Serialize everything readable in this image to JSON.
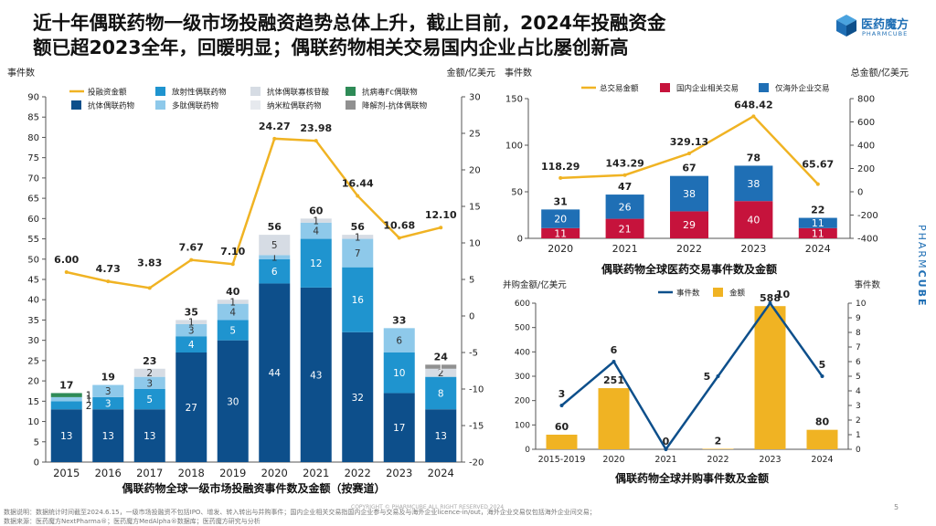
{
  "slide": {
    "title_line1": "近十年偶联药物一级市场投融资趋势总体上升，截止目前，2024年投融资金",
    "title_line2": "额已超2023全年，回暖明显；偶联药物相关交易国内企业占比屡创新高",
    "brand_name": "医药魔方",
    "brand_sub": "PHARMCUBE",
    "side_brand_pharm": "PHARM",
    "side_brand_cube": "CUBE",
    "copyright": "COPYRIGHT © PHARMCUBE ALL RIGHT RESERVED 2024",
    "page_number": "5",
    "footnote_1": "数据说明：数据统计时间截至2024.6.15，一级市场投融资不包括IPO、增发、转入转出与并购事件；国内企业相关交易指国内企业参与交易及与海外企业licence-in/out，海外企业交易仅包括海外企业间交易；",
    "footnote_2": "数据来源：医药魔方NextPharma®；医药魔方MedAlpha®数据库；医药魔方研究与分析",
    "colors": {
      "dark_blue": "#0d4f8b",
      "mid_blue": "#1f94cf",
      "light_blue": "#8ec9ea",
      "light_gray": "#d6dce4",
      "gold": "#f0b323",
      "crimson": "#c6133c",
      "gray": "#909090"
    }
  },
  "chart_data": [
    {
      "id": "primary-market",
      "type": "bar",
      "stacked": true,
      "title": "偶联药物全球一级市场投融资事件数及金额（按赛道）",
      "ylabel": "事件数",
      "y2label": "金额/亿美元",
      "ylim": [
        0,
        90
      ],
      "y2lim": [
        -20,
        30
      ],
      "y_ticks": [
        0,
        5,
        10,
        15,
        20,
        25,
        30,
        35,
        40,
        45,
        50,
        55,
        60,
        65,
        70,
        75,
        80,
        85,
        90
      ],
      "y2_ticks": [
        -20,
        -15,
        -10,
        -5,
        0,
        5,
        10,
        15,
        20,
        25,
        30
      ],
      "categories": [
        "2015",
        "2016",
        "2017",
        "2018",
        "2019",
        "2020",
        "2021",
        "2022",
        "2023",
        "2024"
      ],
      "series": [
        {
          "name": "抗体偶联药物",
          "color": "#0d4f8b",
          "values": [
            13,
            13,
            13,
            27,
            30,
            44,
            43,
            32,
            17,
            13
          ],
          "labels": [
            "13",
            "13",
            "13",
            "27",
            "30",
            "44",
            "43",
            "32",
            "17",
            "13"
          ]
        },
        {
          "name": "放射性偶联药物",
          "color": "#1f94cf",
          "values": [
            2,
            3,
            5,
            4,
            5,
            6,
            12,
            16,
            10,
            8
          ],
          "labels": [
            "2",
            "3",
            "5",
            "4",
            "5",
            "6",
            "12",
            "16",
            "10",
            "8"
          ]
        },
        {
          "name": "多肽偶联药物",
          "color": "#8ec9ea",
          "values": [
            1,
            3,
            3,
            3,
            4,
            1,
            4,
            7,
            6,
            0
          ],
          "labels": [
            "1",
            "3",
            "3",
            "3",
            "4",
            "1",
            "4",
            "7",
            "6",
            ""
          ]
        },
        {
          "name": "抗体偶联寡核苷酸",
          "color": "#d6dce4",
          "values": [
            0,
            0,
            2,
            1,
            1,
            5,
            1,
            1,
            0,
            2
          ],
          "labels": [
            "",
            "",
            "2",
            "1",
            "1",
            "5",
            "1",
            "1",
            "",
            "2"
          ]
        },
        {
          "name": "纳米粒偶联药物",
          "color": "#e6e9ee",
          "values": [
            0,
            0,
            0,
            0,
            0,
            0,
            0,
            0,
            0,
            0
          ],
          "labels": [
            "",
            "",
            "",
            "",
            "",
            "",
            "",
            "",
            "",
            ""
          ]
        },
        {
          "name": "抗病毒Fc偶联物",
          "color": "#2e8b57",
          "values": [
            1,
            0,
            0,
            0,
            0,
            0,
            0,
            0,
            0,
            0
          ],
          "labels": [
            "1",
            "",
            "",
            "",
            "",
            "",
            "",
            "",
            "",
            ""
          ]
        },
        {
          "name": "降解剂-抗体偶联物",
          "color": "#909090",
          "values": [
            0,
            0,
            0,
            0,
            0,
            0,
            0,
            0,
            0,
            1
          ],
          "labels": [
            "",
            "",
            "",
            "",
            "",
            "",
            "",
            "",
            "",
            "1"
          ]
        }
      ],
      "totals": [
        "17",
        "19",
        "23",
        "35",
        "40",
        "56",
        "60",
        "56",
        "33",
        "24"
      ],
      "total_values": [
        17,
        19,
        23,
        35,
        40,
        56,
        60,
        56,
        33,
        24
      ],
      "line": {
        "name": "投融资金额",
        "color": "#f0b323",
        "values": [
          6.0,
          4.73,
          3.83,
          7.67,
          7.1,
          24.27,
          23.98,
          16.44,
          10.68,
          12.1
        ],
        "labels": [
          "6.00",
          "4.73",
          "3.83",
          "7.67",
          "7.10",
          "24.27",
          "23.98",
          "16.44",
          "10.68",
          "12.10"
        ]
      }
    },
    {
      "id": "pharma-deals",
      "type": "bar",
      "stacked": true,
      "title": "偶联药物全球医药交易事件数及金额",
      "ylabel": "事件数",
      "y2label": "总金额/亿美元",
      "ylim": [
        0,
        150
      ],
      "y2lim": [
        -400,
        800
      ],
      "y_ticks": [
        0,
        50,
        100,
        150
      ],
      "y2_ticks": [
        -400,
        -200,
        0,
        200,
        400,
        600,
        800
      ],
      "categories": [
        "2020",
        "2021",
        "2022",
        "2023",
        "2024"
      ],
      "series": [
        {
          "name": "国内企业相关交易",
          "color": "#c6133c",
          "values": [
            11,
            21,
            29,
            40,
            11
          ],
          "labels": [
            "11",
            "21",
            "29",
            "40",
            "11"
          ]
        },
        {
          "name": "仅海外企业交易",
          "color": "#1f6fb5",
          "values": [
            20,
            26,
            38,
            38,
            11
          ],
          "labels": [
            "20",
            "26",
            "38",
            "38",
            "11"
          ]
        }
      ],
      "totals": [
        "31",
        "47",
        "67",
        "78",
        "22"
      ],
      "total_values": [
        31,
        47,
        67,
        78,
        22
      ],
      "line": {
        "name": "总交易金额",
        "color": "#f0b323",
        "values": [
          118.29,
          143.29,
          329.13,
          648.42,
          65.67
        ],
        "labels": [
          "118.29",
          "143.29",
          "329.13",
          "648.42",
          "65.67"
        ]
      }
    },
    {
      "id": "mna",
      "type": "bar",
      "title": "偶联药物全球并购事件数及金额",
      "ylabel": "并购金额/亿美元",
      "y2label": "事件数",
      "ylim": [
        0,
        600
      ],
      "y2lim": [
        0,
        10
      ],
      "y_ticks": [
        0,
        100,
        200,
        300,
        400,
        500,
        600
      ],
      "y2_ticks": [
        0,
        1,
        2,
        3,
        4,
        5,
        6,
        7,
        8,
        9,
        10
      ],
      "categories": [
        "2015-2019",
        "2020",
        "2021",
        "2022",
        "2023",
        "2024"
      ],
      "bars": {
        "name": "金额",
        "color": "#f0b323",
        "values": [
          60,
          251,
          0,
          2,
          588,
          80
        ],
        "labels": [
          "60",
          "251",
          "0",
          "2",
          "588",
          "80"
        ]
      },
      "line": {
        "name": "事件数",
        "color": "#0d4f8b",
        "values": [
          3,
          6,
          0,
          5,
          10,
          5
        ],
        "labels": [
          "3",
          "6",
          "0",
          "5",
          "10",
          "5"
        ]
      }
    }
  ]
}
